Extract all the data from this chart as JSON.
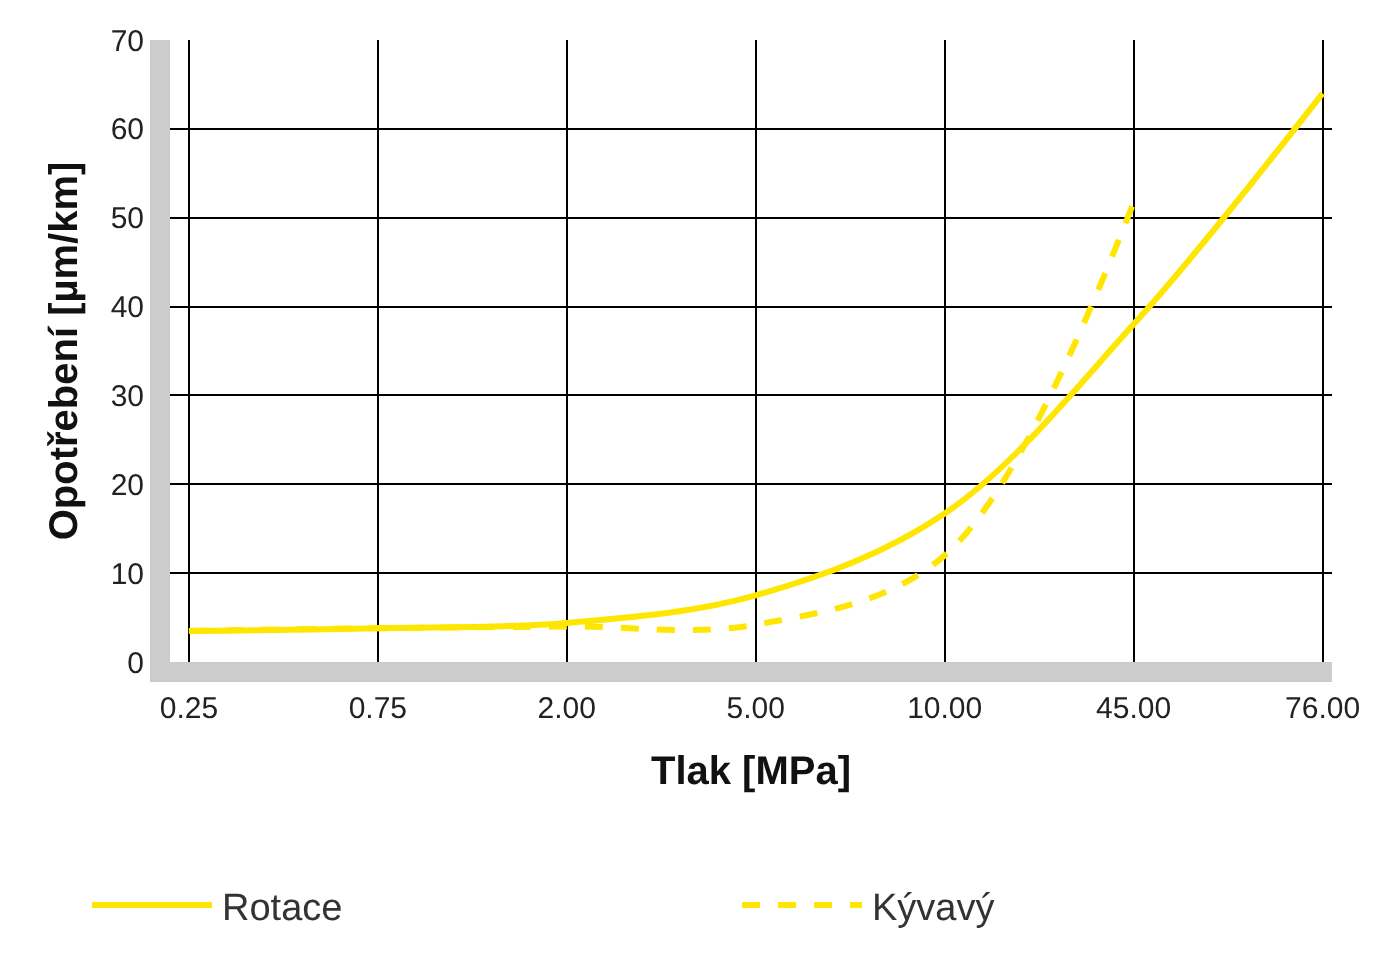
{
  "chart_data": {
    "type": "line",
    "xlabel": "Tlak [MPa]",
    "ylabel": "Opotřebení [µm/km]",
    "categories": [
      "0.25",
      "0.75",
      "2.00",
      "5.00",
      "10.00",
      "45.00",
      "76.00"
    ],
    "ylim": [
      0,
      70
    ],
    "yticks": [
      0,
      10,
      20,
      30,
      40,
      50,
      60,
      70
    ],
    "grid": true,
    "legend": "bottom",
    "series": [
      {
        "name": "Rotace",
        "color": "#ffe600",
        "line_style": "solid",
        "values": [
          3.5,
          3.8,
          4.4,
          7.5,
          16.7,
          38,
          64
        ]
      },
      {
        "name": "Kývavý",
        "color": "#ffe600",
        "line_style": "dashed",
        "values": [
          3.5,
          3.8,
          4,
          4.2,
          12,
          51.7,
          null
        ]
      }
    ]
  }
}
